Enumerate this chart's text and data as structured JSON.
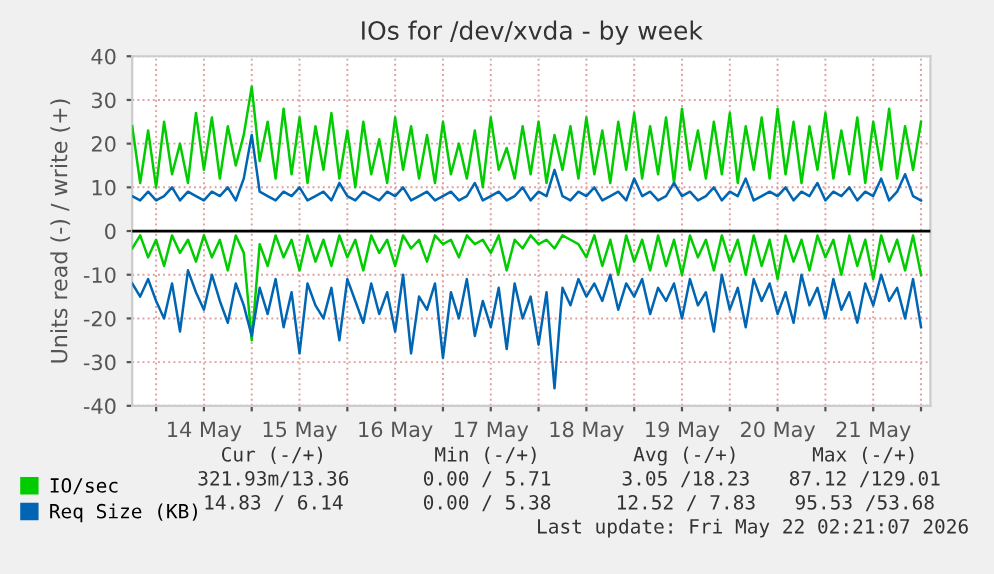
{
  "chart_data": {
    "type": "line",
    "title": "IOs for /dev/xvda - by week",
    "ylabel": "Units read (-) / write (+)",
    "x": [
      "2026-05-13T18:00",
      "2026-05-13T20:00",
      "2026-05-13T22:00",
      "2026-05-14T00:00",
      "2026-05-14T02:00",
      "2026-05-14T04:00",
      "2026-05-14T06:00",
      "2026-05-14T08:00",
      "2026-05-14T10:00",
      "2026-05-14T12:00",
      "2026-05-14T14:00",
      "2026-05-14T16:00",
      "2026-05-14T18:00",
      "2026-05-14T20:00",
      "2026-05-14T22:00",
      "2026-05-15T00:00",
      "2026-05-15T02:00",
      "2026-05-15T04:00",
      "2026-05-15T06:00",
      "2026-05-15T08:00",
      "2026-05-15T10:00",
      "2026-05-15T12:00",
      "2026-05-15T14:00",
      "2026-05-15T16:00",
      "2026-05-15T18:00",
      "2026-05-15T20:00",
      "2026-05-15T22:00",
      "2026-05-16T00:00",
      "2026-05-16T02:00",
      "2026-05-16T04:00",
      "2026-05-16T06:00",
      "2026-05-16T08:00",
      "2026-05-16T10:00",
      "2026-05-16T12:00",
      "2026-05-16T14:00",
      "2026-05-16T16:00",
      "2026-05-16T18:00",
      "2026-05-16T20:00",
      "2026-05-16T22:00",
      "2026-05-17T00:00",
      "2026-05-17T02:00",
      "2026-05-17T04:00",
      "2026-05-17T06:00",
      "2026-05-17T08:00",
      "2026-05-17T10:00",
      "2026-05-17T12:00",
      "2026-05-17T14:00",
      "2026-05-17T16:00",
      "2026-05-17T18:00",
      "2026-05-17T20:00",
      "2026-05-17T22:00",
      "2026-05-18T00:00",
      "2026-05-18T02:00",
      "2026-05-18T04:00",
      "2026-05-18T06:00",
      "2026-05-18T08:00",
      "2026-05-18T10:00",
      "2026-05-18T12:00",
      "2026-05-18T14:00",
      "2026-05-18T16:00",
      "2026-05-18T18:00",
      "2026-05-18T20:00",
      "2026-05-18T22:00",
      "2026-05-19T00:00",
      "2026-05-19T02:00",
      "2026-05-19T04:00",
      "2026-05-19T06:00",
      "2026-05-19T08:00",
      "2026-05-19T10:00",
      "2026-05-19T12:00",
      "2026-05-19T14:00",
      "2026-05-19T16:00",
      "2026-05-19T18:00",
      "2026-05-19T20:00",
      "2026-05-19T22:00",
      "2026-05-20T00:00",
      "2026-05-20T02:00",
      "2026-05-20T04:00",
      "2026-05-20T06:00",
      "2026-05-20T08:00",
      "2026-05-20T10:00",
      "2026-05-20T12:00",
      "2026-05-20T14:00",
      "2026-05-20T16:00",
      "2026-05-20T18:00",
      "2026-05-20T20:00",
      "2026-05-20T22:00",
      "2026-05-21T00:00",
      "2026-05-21T02:00",
      "2026-05-21T04:00",
      "2026-05-21T06:00",
      "2026-05-21T08:00",
      "2026-05-21T10:00",
      "2026-05-21T12:00",
      "2026-05-21T14:00",
      "2026-05-21T16:00",
      "2026-05-21T18:00",
      "2026-05-21T20:00",
      "2026-05-21T22:00",
      "2026-05-22T00:00"
    ],
    "series": [
      {
        "name": "IO/sec",
        "color": "#00cc00",
        "values": [
          24,
          11,
          23,
          10,
          25,
          13,
          20,
          11,
          27,
          14,
          26,
          12,
          24,
          15,
          22,
          33,
          16,
          25,
          12,
          28,
          13,
          26,
          11,
          24,
          14,
          27,
          12,
          23,
          10,
          25,
          13,
          21,
          11,
          26,
          14,
          24,
          12,
          22,
          11,
          25,
          13,
          20,
          12,
          23,
          10,
          26,
          14,
          19,
          12,
          24,
          13,
          25,
          11,
          22,
          14,
          24,
          12,
          26,
          13,
          23,
          11,
          25,
          14,
          27,
          12,
          24,
          13,
          26,
          11,
          28,
          14,
          23,
          12,
          25,
          13,
          27,
          11,
          24,
          14,
          26,
          12,
          28,
          13,
          25,
          11,
          24,
          14,
          27,
          12,
          23,
          13,
          26,
          11,
          25,
          14,
          28,
          12,
          24,
          14,
          25
        ]
      },
      {
        "color": "#00cc00",
        "values": [
          -4,
          -1,
          -6,
          -2,
          -8,
          -1,
          -5,
          -2,
          -7,
          -1,
          -6,
          -2,
          -9,
          -1,
          -5,
          -25,
          -3,
          -8,
          -1,
          -6,
          -2,
          -9,
          -1,
          -7,
          -2,
          -8,
          -1,
          -6,
          -2,
          -9,
          -1,
          -5,
          -2,
          -8,
          -1,
          -4,
          -2,
          -7,
          -1,
          -3,
          -2,
          -6,
          -1,
          -3,
          -2,
          -5,
          -1,
          -9,
          -2,
          -4,
          -1,
          -3,
          -2,
          -4,
          -1,
          -2,
          -3,
          -6,
          -1,
          -8,
          -2,
          -10,
          -1,
          -7,
          -2,
          -9,
          -1,
          -8,
          -2,
          -10,
          -1,
          -6,
          -2,
          -9,
          -1,
          -7,
          -2,
          -10,
          -1,
          -8,
          -2,
          -11,
          -1,
          -7,
          -2,
          -9,
          -1,
          -6,
          -2,
          -10,
          -1,
          -8,
          -2,
          -11,
          -1,
          -7,
          -2,
          -9,
          -1,
          -10
        ]
      },
      {
        "name": "Req Size (KB)",
        "color": "#0066b3",
        "values": [
          8,
          7,
          9,
          7,
          8,
          10,
          7,
          9,
          8,
          7,
          9,
          8,
          10,
          7,
          12,
          22,
          9,
          8,
          7,
          9,
          8,
          10,
          7,
          8,
          9,
          7,
          11,
          8,
          7,
          9,
          8,
          7,
          9,
          8,
          10,
          7,
          8,
          9,
          7,
          8,
          9,
          7,
          8,
          11,
          7,
          8,
          9,
          7,
          8,
          10,
          7,
          9,
          8,
          14,
          8,
          7,
          9,
          8,
          10,
          7,
          8,
          9,
          7,
          12,
          8,
          9,
          7,
          8,
          11,
          8,
          9,
          7,
          8,
          10,
          7,
          9,
          8,
          12,
          7,
          8,
          9,
          8,
          10,
          7,
          9,
          8,
          11,
          7,
          9,
          8,
          10,
          7,
          9,
          8,
          12,
          7,
          9,
          13,
          8,
          7
        ]
      },
      {
        "color": "#0066b3",
        "values": [
          -12,
          -15,
          -11,
          -16,
          -20,
          -12,
          -23,
          -9,
          -14,
          -18,
          -10,
          -16,
          -21,
          -12,
          -17,
          -24,
          -13,
          -19,
          -11,
          -22,
          -14,
          -28,
          -12,
          -17,
          -20,
          -13,
          -25,
          -11,
          -16,
          -21,
          -12,
          -19,
          -14,
          -23,
          -10,
          -28,
          -15,
          -18,
          -12,
          -29,
          -14,
          -20,
          -11,
          -24,
          -16,
          -22,
          -13,
          -27,
          -12,
          -20,
          -15,
          -26,
          -14,
          -36,
          -13,
          -17,
          -11,
          -15,
          -12,
          -16,
          -10,
          -18,
          -12,
          -15,
          -11,
          -19,
          -13,
          -16,
          -12,
          -20,
          -11,
          -17,
          -14,
          -23,
          -10,
          -18,
          -13,
          -22,
          -11,
          -16,
          -12,
          -19,
          -14,
          -21,
          -10,
          -17,
          -13,
          -20,
          -11,
          -18,
          -14,
          -21,
          -12,
          -17,
          -10,
          -16,
          -13,
          -20,
          -11,
          -22
        ]
      }
    ],
    "xlim": [
      "2026-05-13T18:00",
      "2026-05-22T02:21"
    ],
    "xticks": [
      {
        "value": "2026-05-14T00:00",
        "label": null
      },
      {
        "value": "2026-05-14T12:00",
        "label": "14 May"
      },
      {
        "value": "2026-05-15T00:00",
        "label": null
      },
      {
        "value": "2026-05-15T12:00",
        "label": "15 May"
      },
      {
        "value": "2026-05-16T00:00",
        "label": null
      },
      {
        "value": "2026-05-16T12:00",
        "label": "16 May"
      },
      {
        "value": "2026-05-17T00:00",
        "label": null
      },
      {
        "value": "2026-05-17T12:00",
        "label": "17 May"
      },
      {
        "value": "2026-05-18T00:00",
        "label": null
      },
      {
        "value": "2026-05-18T12:00",
        "label": "18 May"
      },
      {
        "value": "2026-05-19T00:00",
        "label": null
      },
      {
        "value": "2026-05-19T12:00",
        "label": "19 May"
      },
      {
        "value": "2026-05-20T00:00",
        "label": null
      },
      {
        "value": "2026-05-20T12:00",
        "label": "20 May"
      },
      {
        "value": "2026-05-21T00:00",
        "label": null
      },
      {
        "value": "2026-05-21T12:00",
        "label": "21 May"
      },
      {
        "value": "2026-05-22T00:00",
        "label": null
      }
    ],
    "ylim": [
      -40,
      40
    ],
    "yticks": [
      -40,
      -30,
      -20,
      -10,
      0,
      10,
      20,
      30,
      40
    ],
    "grid": true,
    "legend": "bottom left",
    "marker": "none",
    "line_style": "solid",
    "ref_lines": [
      {
        "axis": "y",
        "value": 0,
        "color": "#000000"
      }
    ],
    "annotations": [
      "Cur (-/+)",
      "Min (-/+)",
      "Avg (-/+)",
      "Max (-/+)",
      "321.93m/13.36",
      "0.00 / 5.71",
      "3.05 /18.23",
      "87.12 /129.01",
      "14.83 / 6.14",
      "0.00 / 5.38",
      "12.52 / 7.83",
      "95.53 /53.68",
      "Last update: Fri May 22 02:21:07 2026"
    ]
  }
}
